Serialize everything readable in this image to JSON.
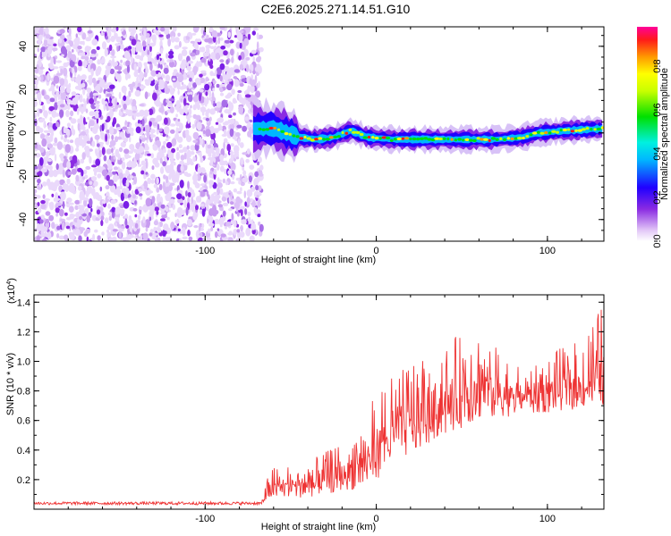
{
  "title": "C2E6.2025.271.14.51.G10",
  "chart_data": [
    {
      "type": "heatmap",
      "name": "spectrogram",
      "xlabel": "Height of straight line (km)",
      "ylabel": "Frequency (Hz)",
      "xlim": [
        -200,
        133
      ],
      "ylim": [
        -50,
        49
      ],
      "x_ticks": [
        -100,
        0,
        100
      ],
      "x_tick_labels": [
        "-100",
        "0",
        "100"
      ],
      "y_ticks": [
        -40,
        -20,
        0,
        20,
        40
      ],
      "y_tick_labels": [
        "-40",
        "-20",
        "0",
        "20",
        "40"
      ],
      "noise_region_km": [
        -200,
        -67
      ],
      "signal_track": [
        {
          "x": -72,
          "f": 2
        },
        {
          "x": -60,
          "f": 2
        },
        {
          "x": -52,
          "f": 0
        },
        {
          "x": -45,
          "f": -2
        },
        {
          "x": -35,
          "f": -3
        },
        {
          "x": -25,
          "f": -2
        },
        {
          "x": -15,
          "f": 1
        },
        {
          "x": -5,
          "f": -2
        },
        {
          "x": 10,
          "f": -3
        },
        {
          "x": 30,
          "f": -3
        },
        {
          "x": 50,
          "f": -3
        },
        {
          "x": 70,
          "f": -3
        },
        {
          "x": 85,
          "f": -2
        },
        {
          "x": 95,
          "f": 0
        },
        {
          "x": 110,
          "f": 1
        },
        {
          "x": 133,
          "f": 2
        }
      ],
      "colorbar": {
        "label": "Normalized spectral amplitude",
        "range": [
          0.0,
          0.98
        ],
        "ticks": [
          0.0,
          0.2,
          0.4,
          0.6,
          0.8
        ],
        "tick_labels": [
          "0.0",
          "0.2",
          "0.4",
          "0.6",
          "0.8"
        ]
      }
    },
    {
      "type": "line",
      "name": "snr",
      "xlabel": "Height of straight line (km)",
      "ylabel": "SNR (10 * v/v)",
      "scale_note": "(x10",
      "scale_exp": "4",
      "scale_close": ")",
      "xlim": [
        -200,
        133
      ],
      "ylim": [
        0,
        14500
      ],
      "x_ticks": [
        -100,
        0,
        100
      ],
      "x_tick_labels": [
        "-100",
        "0",
        "100"
      ],
      "y_ticks": [
        2000,
        4000,
        6000,
        8000,
        10000,
        12000,
        14000
      ],
      "y_tick_labels": [
        "0.2",
        "0.4",
        "0.6",
        "0.8",
        "1.0",
        "1.2",
        "1.4"
      ],
      "envelope": [
        {
          "x": -200,
          "base": 300,
          "peak": 500
        },
        {
          "x": -67,
          "base": 300,
          "peak": 500
        },
        {
          "x": -62,
          "base": 700,
          "peak": 2800
        },
        {
          "x": -40,
          "base": 800,
          "peak": 3200
        },
        {
          "x": -20,
          "base": 1200,
          "peak": 4500
        },
        {
          "x": -5,
          "base": 1500,
          "peak": 6000
        },
        {
          "x": 0,
          "base": 2000,
          "peak": 8500
        },
        {
          "x": 10,
          "base": 3000,
          "peak": 9000
        },
        {
          "x": 25,
          "base": 4000,
          "peak": 10500
        },
        {
          "x": 40,
          "base": 5000,
          "peak": 11500
        },
        {
          "x": 60,
          "base": 6000,
          "peak": 12000
        },
        {
          "x": 80,
          "base": 6300,
          "peak": 10000
        },
        {
          "x": 100,
          "base": 6500,
          "peak": 10500
        },
        {
          "x": 120,
          "base": 6800,
          "peak": 11500
        },
        {
          "x": 133,
          "base": 7000,
          "peak": 14000
        }
      ]
    }
  ]
}
